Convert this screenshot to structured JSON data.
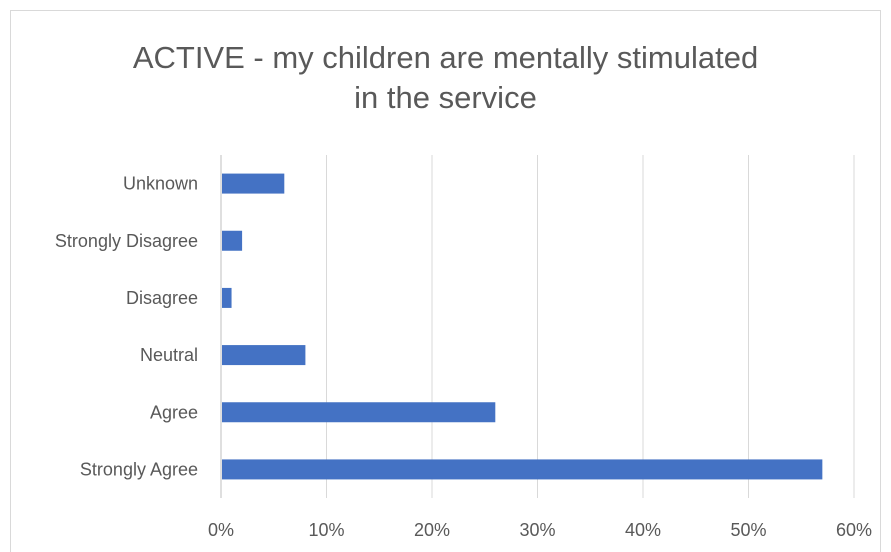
{
  "chart_data": {
    "type": "bar",
    "orientation": "horizontal",
    "title": "ACTIVE - my children are mentally stimulated in the service",
    "categories": [
      "Unknown",
      "Strongly Disagree",
      "Disagree",
      "Neutral",
      "Agree",
      "Strongly Agree"
    ],
    "values": [
      6,
      2,
      1,
      8,
      26,
      57
    ],
    "value_unit": "%",
    "xlim": [
      0,
      60
    ],
    "xticks": [
      "0%",
      "10%",
      "20%",
      "30%",
      "40%",
      "50%",
      "60%"
    ],
    "grid": true,
    "legend": "none",
    "bar_color": "#4472c4",
    "grid_color": "#d9d9d9",
    "text_color": "#595959"
  }
}
